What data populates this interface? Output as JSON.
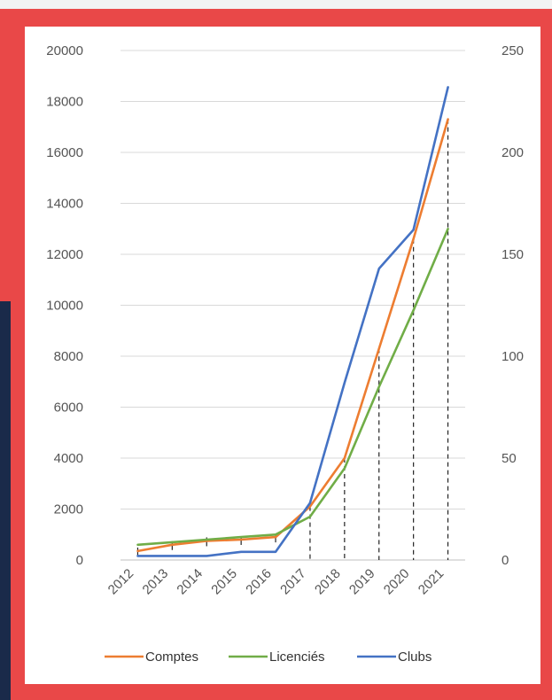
{
  "chart_data": {
    "type": "line",
    "title": "",
    "xlabel": "",
    "ylabel": "",
    "categories": [
      "2012",
      "2013",
      "2014",
      "2015",
      "2016",
      "2017",
      "2018",
      "2019",
      "2020",
      "2021"
    ],
    "y_left": {
      "ylim": [
        0,
        20000
      ],
      "ticks": [
        "0",
        "2000",
        "4000",
        "6000",
        "8000",
        "10000",
        "12000",
        "14000",
        "16000",
        "18000",
        "20000"
      ]
    },
    "y_right": {
      "ylim": [
        0,
        250
      ],
      "ticks": [
        "0",
        "50",
        "100",
        "150",
        "200",
        "250"
      ]
    },
    "grid": true,
    "legend_position": "bottom",
    "series": [
      {
        "name": "Comptes",
        "color": "#ed7d31",
        "axis": "left",
        "values": [
          350,
          600,
          750,
          800,
          900,
          2100,
          4000,
          8300,
          12600,
          17300
        ]
      },
      {
        "name": "Licenciés",
        "color": "#70ad47",
        "axis": "left",
        "values": [
          600,
          700,
          800,
          900,
          1000,
          1700,
          3600,
          6800,
          9800,
          13000
        ]
      },
      {
        "name": "Clubs",
        "color": "#4472c4",
        "axis": "right",
        "values": [
          2,
          2,
          2,
          4,
          4,
          28,
          87,
          143,
          162,
          232
        ]
      }
    ],
    "drop_lines": {
      "style": "dashed",
      "color": "#222222",
      "series": "Comptes",
      "from_category": "2017"
    }
  }
}
